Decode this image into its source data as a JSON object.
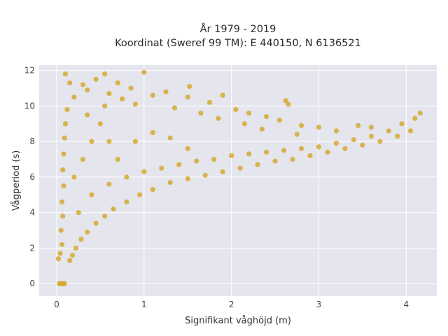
{
  "chart_data": {
    "type": "scatter",
    "title_line1": "År 1979 - 2019",
    "title_line2": "Koordinat (Sweref 99 TM): E 440150, N 6136521",
    "xlabel": "Signifikant våghöjd (m)",
    "ylabel": "Vågperiod (s)",
    "xlim": [
      -0.2,
      4.35
    ],
    "ylim": [
      -0.7,
      12.3
    ],
    "x_ticks": [
      0,
      1,
      2,
      3,
      4
    ],
    "y_ticks": [
      0,
      2,
      4,
      6,
      8,
      10,
      12
    ],
    "grid": true,
    "legend": "none",
    "marker_color": "#d4a520",
    "plot_background": "#e5e5ee",
    "points": [
      {
        "x": 0.03,
        "y": 0.0
      },
      {
        "x": 0.05,
        "y": 0.0
      },
      {
        "x": 0.07,
        "y": 0.0
      },
      {
        "x": 0.09,
        "y": 0.0
      },
      {
        "x": 0.02,
        "y": 1.4
      },
      {
        "x": 0.04,
        "y": 1.7
      },
      {
        "x": 0.06,
        "y": 2.2
      },
      {
        "x": 0.05,
        "y": 3.0
      },
      {
        "x": 0.07,
        "y": 3.8
      },
      {
        "x": 0.06,
        "y": 4.6
      },
      {
        "x": 0.08,
        "y": 5.5
      },
      {
        "x": 0.07,
        "y": 6.4
      },
      {
        "x": 0.08,
        "y": 7.3
      },
      {
        "x": 0.09,
        "y": 8.2
      },
      {
        "x": 0.1,
        "y": 9.0
      },
      {
        "x": 0.12,
        "y": 9.8
      },
      {
        "x": 0.15,
        "y": 1.3
      },
      {
        "x": 0.18,
        "y": 1.6
      },
      {
        "x": 0.22,
        "y": 2.0
      },
      {
        "x": 0.28,
        "y": 2.5
      },
      {
        "x": 0.35,
        "y": 2.9
      },
      {
        "x": 0.45,
        "y": 3.4
      },
      {
        "x": 0.55,
        "y": 3.8
      },
      {
        "x": 0.65,
        "y": 4.2
      },
      {
        "x": 0.8,
        "y": 4.6
      },
      {
        "x": 0.95,
        "y": 5.0
      },
      {
        "x": 1.1,
        "y": 5.3
      },
      {
        "x": 1.3,
        "y": 5.7
      },
      {
        "x": 1.5,
        "y": 5.9
      },
      {
        "x": 1.7,
        "y": 6.1
      },
      {
        "x": 1.9,
        "y": 6.3
      },
      {
        "x": 2.1,
        "y": 6.5
      },
      {
        "x": 2.3,
        "y": 6.7
      },
      {
        "x": 2.5,
        "y": 6.9
      },
      {
        "x": 2.7,
        "y": 7.0
      },
      {
        "x": 2.9,
        "y": 7.2
      },
      {
        "x": 3.1,
        "y": 7.4
      },
      {
        "x": 3.3,
        "y": 7.6
      },
      {
        "x": 3.5,
        "y": 7.8
      },
      {
        "x": 3.7,
        "y": 8.0
      },
      {
        "x": 3.9,
        "y": 8.3
      },
      {
        "x": 4.05,
        "y": 8.6
      },
      {
        "x": 4.1,
        "y": 9.3
      },
      {
        "x": 4.16,
        "y": 9.6
      },
      {
        "x": 3.95,
        "y": 9.0
      },
      {
        "x": 3.8,
        "y": 8.6
      },
      {
        "x": 3.6,
        "y": 8.3
      },
      {
        "x": 3.4,
        "y": 8.1
      },
      {
        "x": 3.2,
        "y": 7.9
      },
      {
        "x": 3.0,
        "y": 7.7
      },
      {
        "x": 2.8,
        "y": 7.6
      },
      {
        "x": 2.6,
        "y": 7.5
      },
      {
        "x": 2.4,
        "y": 7.4
      },
      {
        "x": 2.2,
        "y": 7.3
      },
      {
        "x": 2.0,
        "y": 7.2
      },
      {
        "x": 1.8,
        "y": 7.0
      },
      {
        "x": 1.6,
        "y": 6.9
      },
      {
        "x": 1.4,
        "y": 6.7
      },
      {
        "x": 1.2,
        "y": 6.5
      },
      {
        "x": 1.0,
        "y": 6.3
      },
      {
        "x": 0.8,
        "y": 6.0
      },
      {
        "x": 0.6,
        "y": 5.6
      },
      {
        "x": 0.4,
        "y": 5.0
      },
      {
        "x": 0.25,
        "y": 4.0
      },
      {
        "x": 0.2,
        "y": 10.5
      },
      {
        "x": 0.3,
        "y": 11.2
      },
      {
        "x": 0.45,
        "y": 11.5
      },
      {
        "x": 0.55,
        "y": 11.8
      },
      {
        "x": 0.7,
        "y": 11.3
      },
      {
        "x": 0.85,
        "y": 11.0
      },
      {
        "x": 1.0,
        "y": 11.9
      },
      {
        "x": 1.1,
        "y": 10.6
      },
      {
        "x": 1.25,
        "y": 10.8
      },
      {
        "x": 1.5,
        "y": 10.5
      },
      {
        "x": 1.52,
        "y": 11.1
      },
      {
        "x": 1.75,
        "y": 10.2
      },
      {
        "x": 1.9,
        "y": 10.6
      },
      {
        "x": 2.05,
        "y": 9.8
      },
      {
        "x": 2.2,
        "y": 9.6
      },
      {
        "x": 2.4,
        "y": 9.4
      },
      {
        "x": 2.55,
        "y": 9.2
      },
      {
        "x": 2.62,
        "y": 10.3
      },
      {
        "x": 2.65,
        "y": 10.1
      },
      {
        "x": 2.8,
        "y": 8.9
      },
      {
        "x": 3.0,
        "y": 8.8
      },
      {
        "x": 3.2,
        "y": 8.6
      },
      {
        "x": 3.45,
        "y": 8.9
      },
      {
        "x": 3.6,
        "y": 8.8
      },
      {
        "x": 0.1,
        "y": 11.8
      },
      {
        "x": 0.15,
        "y": 11.3
      },
      {
        "x": 0.35,
        "y": 10.9
      },
      {
        "x": 0.6,
        "y": 10.7
      },
      {
        "x": 0.75,
        "y": 10.4
      },
      {
        "x": 0.9,
        "y": 10.1
      },
      {
        "x": 1.35,
        "y": 9.9
      },
      {
        "x": 1.65,
        "y": 9.6
      },
      {
        "x": 1.85,
        "y": 9.3
      },
      {
        "x": 2.15,
        "y": 9.0
      },
      {
        "x": 2.35,
        "y": 8.7
      },
      {
        "x": 2.75,
        "y": 8.4
      },
      {
        "x": 0.2,
        "y": 6.0
      },
      {
        "x": 0.3,
        "y": 7.0
      },
      {
        "x": 0.4,
        "y": 8.0
      },
      {
        "x": 0.5,
        "y": 9.0
      },
      {
        "x": 0.6,
        "y": 8.0
      },
      {
        "x": 0.7,
        "y": 7.0
      },
      {
        "x": 0.9,
        "y": 8.0
      },
      {
        "x": 1.1,
        "y": 8.5
      },
      {
        "x": 1.3,
        "y": 8.2
      },
      {
        "x": 1.5,
        "y": 7.6
      },
      {
        "x": 0.35,
        "y": 9.5
      },
      {
        "x": 0.55,
        "y": 10.0
      }
    ]
  }
}
